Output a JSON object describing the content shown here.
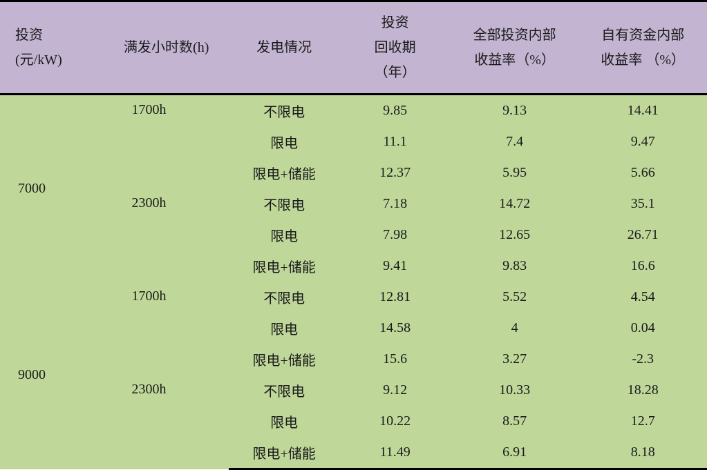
{
  "colors": {
    "header_bg": "#c3b4d1",
    "body_bg": "#bfd89a",
    "border_strong": "#000000",
    "border_light": "#6a6a6a",
    "text": "#1a1a1a"
  },
  "typography": {
    "font_family": "SimSun",
    "header_fontsize_pt": 15,
    "body_fontsize_pt": 15
  },
  "table": {
    "headers": {
      "investment": "投资\n(元/kW)",
      "hours": "满发小时数(h)",
      "gen": "发电情况",
      "payback": "投资\n回收期\n（年）",
      "irr_total": "全部投资内部\n收益率（%）",
      "irr_equity": "自有资金内部\n收益率 （%）"
    },
    "groups": [
      {
        "investment": "7000",
        "hours": [
          "1700h",
          "",
          "",
          "2300h",
          "",
          ""
        ],
        "rows": [
          {
            "gen": "不限电",
            "payback": "9.85",
            "irr_total": "9.13",
            "irr_equity": "14.41"
          },
          {
            "gen": "限电",
            "payback": "11.1",
            "irr_total": "7.4",
            "irr_equity": "9.47"
          },
          {
            "gen": "限电+储能",
            "payback": "12.37",
            "irr_total": "5.95",
            "irr_equity": "5.66"
          },
          {
            "gen": "不限电",
            "payback": "7.18",
            "irr_total": "14.72",
            "irr_equity": "35.1"
          },
          {
            "gen": "限电",
            "payback": "7.98",
            "irr_total": "12.65",
            "irr_equity": "26.71"
          },
          {
            "gen": "限电+储能",
            "payback": "9.41",
            "irr_total": "9.83",
            "irr_equity": "16.6"
          }
        ]
      },
      {
        "investment": "9000",
        "hours": [
          "1700h",
          "",
          "",
          "2300h",
          "",
          ""
        ],
        "rows": [
          {
            "gen": "不限电",
            "payback": "12.81",
            "irr_total": "5.52",
            "irr_equity": "4.54"
          },
          {
            "gen": "限电",
            "payback": "14.58",
            "irr_total": "4",
            "irr_equity": "0.04"
          },
          {
            "gen": "限电+储能",
            "payback": "15.6",
            "irr_total": "3.27",
            "irr_equity": "-2.3"
          },
          {
            "gen": "不限电",
            "payback": "9.12",
            "irr_total": "10.33",
            "irr_equity": "18.28"
          },
          {
            "gen": "限电",
            "payback": "10.22",
            "irr_total": "8.57",
            "irr_equity": "12.7"
          },
          {
            "gen": "限电+储能",
            "payback": "11.49",
            "irr_total": "6.91",
            "irr_equity": "8.18"
          }
        ]
      }
    ]
  }
}
